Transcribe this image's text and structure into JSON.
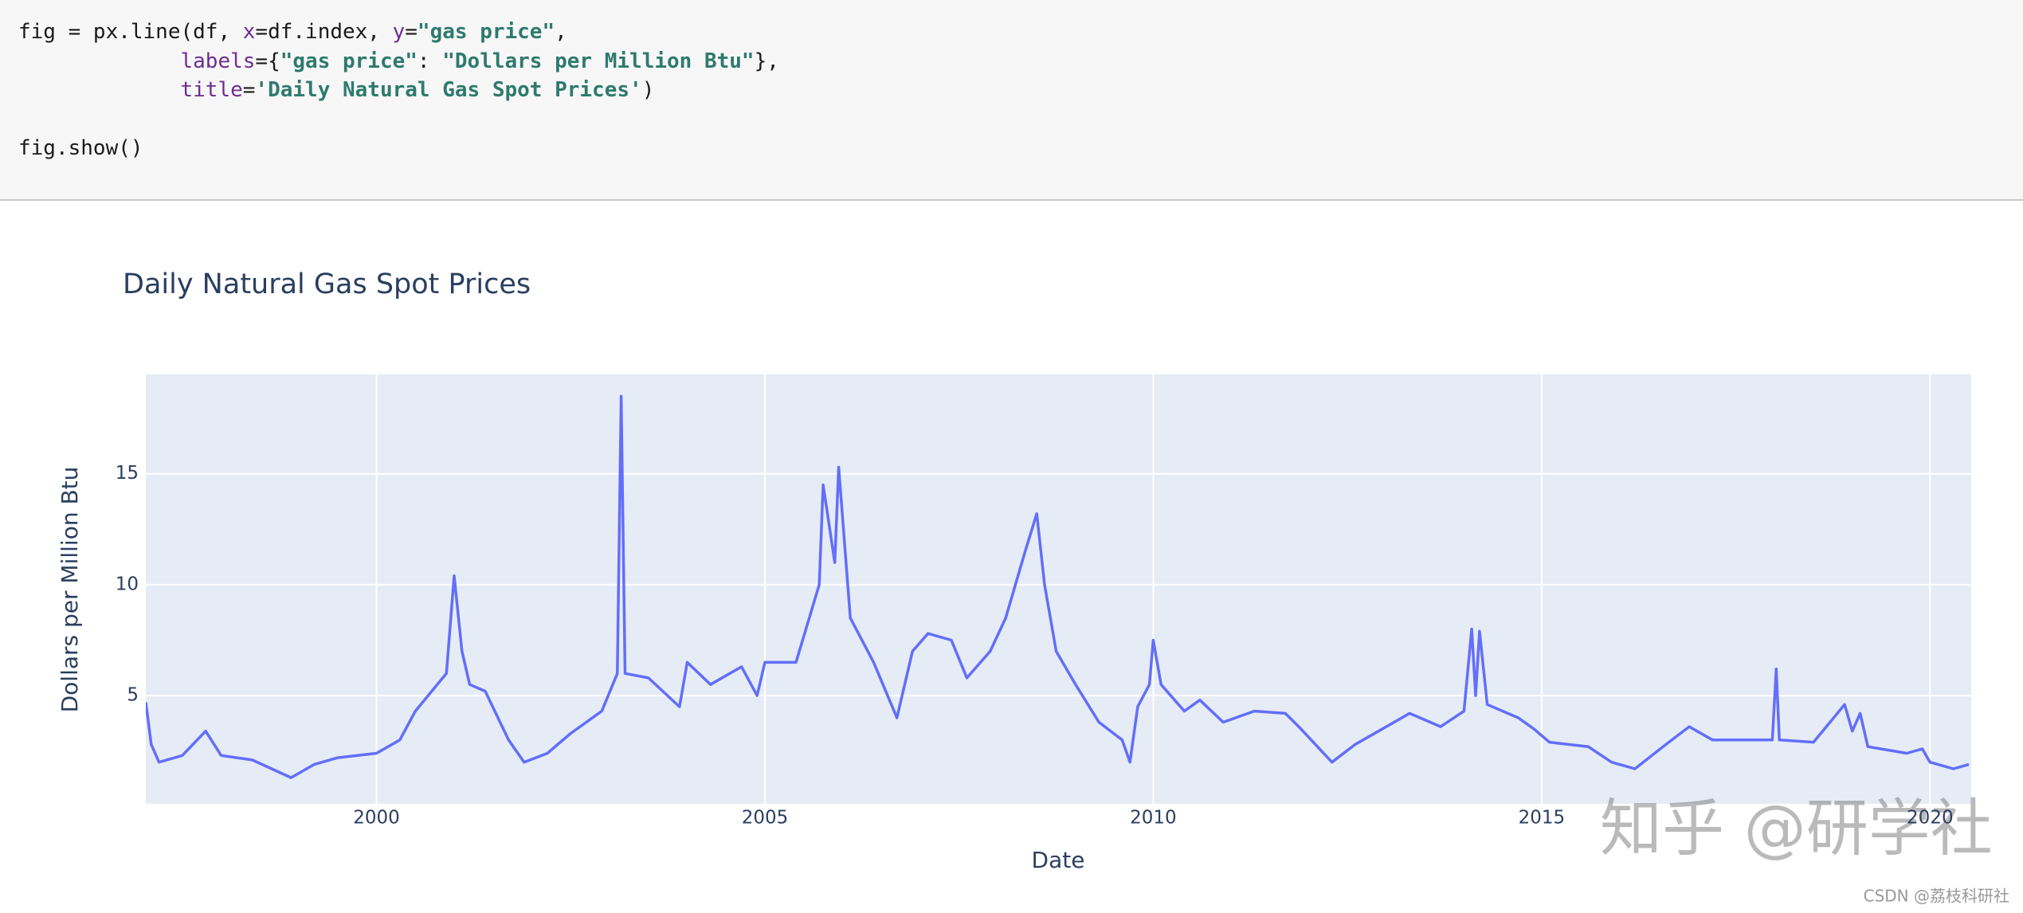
{
  "code": {
    "lines": [
      [
        {
          "t": "fig = px.line(df, ",
          "c": "#1a1a1a"
        },
        {
          "t": "x",
          "c": "#6f2c91"
        },
        {
          "t": "=df.index, ",
          "c": "#1a1a1a"
        },
        {
          "t": "y",
          "c": "#6f2c91"
        },
        {
          "t": "=",
          "c": "#1a1a1a"
        },
        {
          "t": "\"gas price\"",
          "c": "#2e7a6e"
        },
        {
          "t": ",",
          "c": "#1a1a1a"
        }
      ],
      [
        {
          "t": "             labels",
          "c": "#6f2c91"
        },
        {
          "t": "={",
          "c": "#1a1a1a"
        },
        {
          "t": "\"gas price\"",
          "c": "#2e7a6e"
        },
        {
          "t": ": ",
          "c": "#1a1a1a"
        },
        {
          "t": "\"Dollars per Million Btu\"",
          "c": "#2e7a6e"
        },
        {
          "t": "},",
          "c": "#1a1a1a"
        }
      ],
      [
        {
          "t": "             title",
          "c": "#6f2c91"
        },
        {
          "t": "=",
          "c": "#1a1a1a"
        },
        {
          "t": "'Daily Natural Gas Spot Prices'",
          "c": "#2e7a6e"
        },
        {
          "t": ")",
          "c": "#1a1a1a"
        }
      ],
      [],
      [
        {
          "t": "fig.show()",
          "c": "#1a1a1a"
        }
      ]
    ]
  },
  "chart_data": {
    "type": "line",
    "title": "Daily Natural Gas Spot Prices",
    "x_label": "Date",
    "y_label": "Dollars per Million Btu",
    "xlim": [
      1997.03,
      2020.53
    ],
    "xticks": [
      2000,
      2005,
      2010,
      2015,
      2020
    ],
    "ylim": [
      0.12,
      19.48
    ],
    "yticks": [
      5,
      10,
      15
    ],
    "grid": true,
    "series": [
      {
        "name": "gas price",
        "color": "#636efa",
        "x": [
          1997.03,
          1997.1,
          1997.2,
          1997.5,
          1997.8,
          1998.0,
          1998.4,
          1998.9,
          1999.2,
          1999.5,
          2000.0,
          2000.3,
          2000.5,
          2000.9,
          2001.0,
          2001.1,
          2001.2,
          2001.4,
          2001.7,
          2001.9,
          2002.2,
          2002.5,
          2002.9,
          2003.1,
          2003.15,
          2003.2,
          2003.5,
          2003.9,
          2004.0,
          2004.3,
          2004.7,
          2004.9,
          2005.0,
          2005.4,
          2005.7,
          2005.75,
          2005.9,
          2005.95,
          2006.1,
          2006.4,
          2006.7,
          2006.9,
          2007.1,
          2007.4,
          2007.6,
          2007.9,
          2008.1,
          2008.35,
          2008.5,
          2008.6,
          2008.75,
          2009.0,
          2009.3,
          2009.6,
          2009.7,
          2009.8,
          2009.95,
          2010.0,
          2010.1,
          2010.4,
          2010.6,
          2010.9,
          2011.3,
          2011.7,
          2011.9,
          2012.3,
          2012.6,
          2012.9,
          2013.3,
          2013.7,
          2014.0,
          2014.1,
          2014.15,
          2014.2,
          2014.3,
          2014.7,
          2014.9,
          2015.1,
          2015.6,
          2015.9,
          2016.2,
          2016.6,
          2016.9,
          2017.2,
          2017.8,
          2017.97,
          2018.02,
          2018.06,
          2018.5,
          2018.9,
          2019.0,
          2019.1,
          2019.2,
          2019.7,
          2019.9,
          2020.0,
          2020.3,
          2020.5
        ],
        "values": [
          4.7,
          2.8,
          2.0,
          2.3,
          3.4,
          2.3,
          2.1,
          1.3,
          1.9,
          2.2,
          2.4,
          3.0,
          4.3,
          6.0,
          10.4,
          7.0,
          5.5,
          5.2,
          3.0,
          2.0,
          2.4,
          3.3,
          4.3,
          6.0,
          18.5,
          6.0,
          5.8,
          4.5,
          6.5,
          5.5,
          6.3,
          5.0,
          6.5,
          6.5,
          10.0,
          14.5,
          11.0,
          15.3,
          8.5,
          6.5,
          4.0,
          7.0,
          7.8,
          7.5,
          5.8,
          7.0,
          8.5,
          11.5,
          13.2,
          10.0,
          7.0,
          5.5,
          3.8,
          3.0,
          2.0,
          4.5,
          5.5,
          7.5,
          5.5,
          4.3,
          4.8,
          3.8,
          4.3,
          4.2,
          3.5,
          2.0,
          2.8,
          3.4,
          4.2,
          3.6,
          4.3,
          8.0,
          5.0,
          7.9,
          4.6,
          4.0,
          3.5,
          2.9,
          2.7,
          2.0,
          1.7,
          2.8,
          3.6,
          3.0,
          3.0,
          3.0,
          6.2,
          3.0,
          2.9,
          4.6,
          3.4,
          4.2,
          2.7,
          2.4,
          2.6,
          2.0,
          1.7,
          1.9
        ]
      }
    ]
  },
  "watermarks": {
    "main": "知乎 @研学社",
    "corner": "CSDN @荔枝科研社"
  }
}
